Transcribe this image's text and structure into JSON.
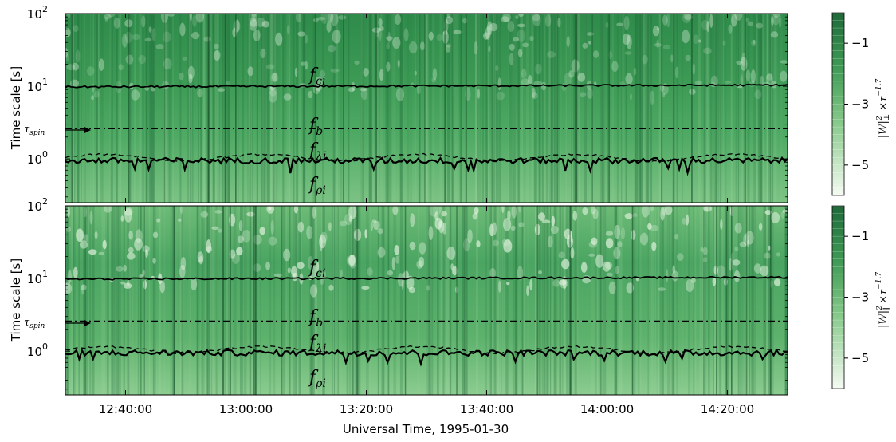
{
  "chart_data": [
    {
      "type": "heatmap",
      "panel": "top",
      "x_range": [
        "12:30:00",
        "14:30:00"
      ],
      "x_tick_labels": [
        "12:40:00",
        "13:00:00",
        "13:20:00",
        "13:40:00",
        "14:00:00",
        "14:20:00"
      ],
      "y_scale": "log",
      "y_range": [
        0.25,
        100
      ],
      "y_tick_labels": [
        {
          "base": "10",
          "exp": "0"
        },
        {
          "base": "10",
          "exp": "1"
        },
        {
          "base": "10",
          "exp": "2"
        }
      ],
      "y_tick_values": [
        1,
        10,
        100
      ],
      "ylabel": "Time scale [s]",
      "colormap": "Greens",
      "colorbar_label": "|W|²⊥ ×τ^-1.7",
      "colorbar_range": [
        -6,
        0
      ],
      "colorbar_ticks": [
        "−1",
        "−3",
        "−5"
      ],
      "colorbar_tick_values": [
        -1,
        -3,
        -5
      ],
      "curves": [
        {
          "name": "f_ci",
          "style": "solid",
          "mean_value": 9.8
        },
        {
          "name": "f_b",
          "style": "dashdot",
          "mean_value": 2.6
        },
        {
          "name": "f_λi",
          "style": "dashed",
          "mean_value": 1.05
        },
        {
          "name": "f_ρi",
          "style": "solid",
          "mean_value": 0.95
        }
      ],
      "tau_spin": 3.2
    },
    {
      "type": "heatmap",
      "panel": "bottom",
      "x_range": [
        "12:30:00",
        "14:30:00"
      ],
      "x_tick_labels": [
        "12:40:00",
        "13:00:00",
        "13:20:00",
        "13:40:00",
        "14:00:00",
        "14:20:00"
      ],
      "y_scale": "log",
      "y_range": [
        0.25,
        100
      ],
      "y_tick_labels": [
        {
          "base": "10",
          "exp": "0"
        },
        {
          "base": "10",
          "exp": "1"
        },
        {
          "base": "10",
          "exp": "2"
        }
      ],
      "y_tick_values": [
        1,
        10,
        100
      ],
      "ylabel": "Time scale [s]",
      "xlabel": "Universal Time,  1995-01-30",
      "colormap": "Greens",
      "colorbar_label": "|W|²∥ ×τ^-1.7",
      "colorbar_range": [
        -6,
        0
      ],
      "colorbar_ticks": [
        "−1",
        "−3",
        "−5"
      ],
      "colorbar_tick_values": [
        -1,
        -3,
        -5
      ],
      "curves": [
        {
          "name": "f_ci",
          "style": "solid",
          "mean_value": 9.8
        },
        {
          "name": "f_b",
          "style": "dashdot",
          "mean_value": 2.6
        },
        {
          "name": "f_λi",
          "style": "dashed",
          "mean_value": 1.05
        },
        {
          "name": "f_ρi",
          "style": "solid",
          "mean_value": 0.95
        }
      ],
      "tau_spin": 3.2
    }
  ],
  "labels": {
    "ylabel": "Time scale [s]",
    "xlabel": "Universal Time,  1995-01-30",
    "tau_spin_base": "τ",
    "tau_spin_sub": "spin",
    "f_ci": {
      "base": "f",
      "sub": "ci"
    },
    "f_b": {
      "base": "f",
      "sub": "b"
    },
    "f_lambda": {
      "base": "f",
      "sub": "λi"
    },
    "f_rho": {
      "base": "f",
      "sub": "ρi"
    },
    "cb_top": {
      "main": "|W|",
      "sup": "2",
      "sub": "⊥",
      "rest": " ×τ",
      "exp": "−1.7"
    },
    "cb_bottom": {
      "main": "|W|",
      "sup": "2",
      "sub": "∥",
      "rest": " ×τ",
      "exp": "−1.7"
    }
  },
  "colors": {
    "dark": "#1f6b3a",
    "mid": "#4fa865",
    "light": "#b8e3b2",
    "pale": "#f5fbf2"
  }
}
